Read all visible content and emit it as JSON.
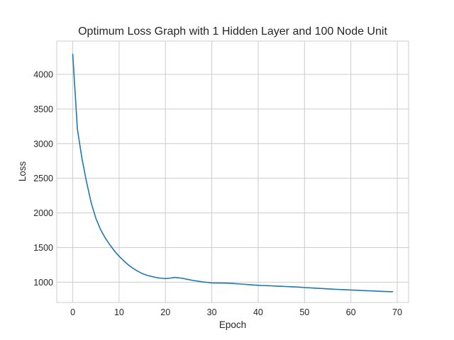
{
  "chart_data": {
    "type": "line",
    "title": "Optimum Loss Graph with 1 Hidden Layer and 100 Node Unit",
    "xlabel": "Epoch",
    "ylabel": "Loss",
    "xlim": [
      -3.45,
      72.45
    ],
    "ylim": [
      708,
      4480
    ],
    "xticks": [
      0,
      10,
      20,
      30,
      40,
      50,
      60,
      70
    ],
    "yticks": [
      1000,
      1500,
      2000,
      2500,
      3000,
      3500,
      4000
    ],
    "grid": true,
    "series": [
      {
        "color": "#1f77b4",
        "x": [
          0,
          1,
          2,
          3,
          4,
          5,
          6,
          7,
          8,
          9,
          10,
          11,
          12,
          13,
          14,
          15,
          16,
          17,
          18,
          19,
          20,
          21,
          22,
          23,
          24,
          25,
          26,
          27,
          28,
          29,
          30,
          31,
          32,
          33,
          34,
          35,
          36,
          37,
          38,
          39,
          40,
          41,
          42,
          43,
          44,
          45,
          46,
          47,
          48,
          49,
          50,
          51,
          52,
          53,
          54,
          55,
          56,
          57,
          58,
          59,
          60,
          61,
          62,
          63,
          64,
          65,
          66,
          67,
          68,
          69
        ],
        "values": [
          4290,
          3210,
          2780,
          2440,
          2140,
          1920,
          1760,
          1640,
          1540,
          1450,
          1375,
          1310,
          1250,
          1200,
          1160,
          1125,
          1100,
          1083,
          1068,
          1058,
          1052,
          1058,
          1070,
          1063,
          1052,
          1038,
          1025,
          1015,
          1005,
          998,
          990,
          988,
          988,
          987,
          985,
          980,
          975,
          970,
          965,
          960,
          955,
          952,
          950,
          947,
          944,
          941,
          938,
          935,
          932,
          928,
          924,
          920,
          916,
          912,
          908,
          904,
          900,
          897,
          894,
          891,
          888,
          885,
          882,
          879,
          876,
          873,
          870,
          867,
          865,
          863
        ]
      }
    ]
  }
}
